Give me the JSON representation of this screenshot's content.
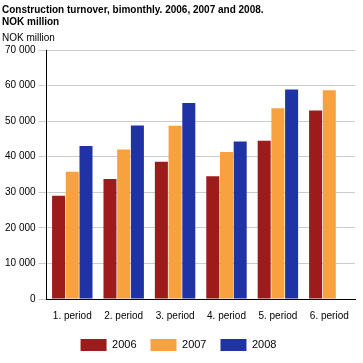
{
  "chart_data": {
    "type": "bar",
    "title": [
      "Construction turnover, bimonthly. 2006, 2007 and 2008.",
      "NOK million"
    ],
    "y_label": "NOK million",
    "categories": [
      "1. period",
      "2. period",
      "3. period",
      "4. period",
      "5. period",
      "6. period"
    ],
    "series": [
      {
        "name": "2006",
        "color": "#9e1b1b",
        "values": [
          29000,
          33700,
          38600,
          34500,
          44500,
          53000
        ]
      },
      {
        "name": "2007",
        "color": "#f7a13f",
        "values": [
          35800,
          42000,
          48700,
          41300,
          53600,
          58700
        ]
      },
      {
        "name": "2008",
        "color": "#1f33a6",
        "values": [
          43000,
          48800,
          55100,
          44300,
          58900,
          null
        ]
      }
    ],
    "ylim": [
      0,
      70000
    ],
    "yticks": [
      0,
      {
        "value": 10000,
        "label": "10 000"
      },
      {
        "value": 20000,
        "label": "20 000"
      },
      {
        "value": 30000,
        "label": "30 000"
      },
      {
        "value": 40000,
        "label": "40 000"
      },
      {
        "value": 50000,
        "label": "50 000"
      },
      {
        "value": 60000,
        "label": "60 000"
      },
      {
        "value": 70000,
        "label": "70 000"
      }
    ],
    "grid": true,
    "legend": "bottom"
  }
}
